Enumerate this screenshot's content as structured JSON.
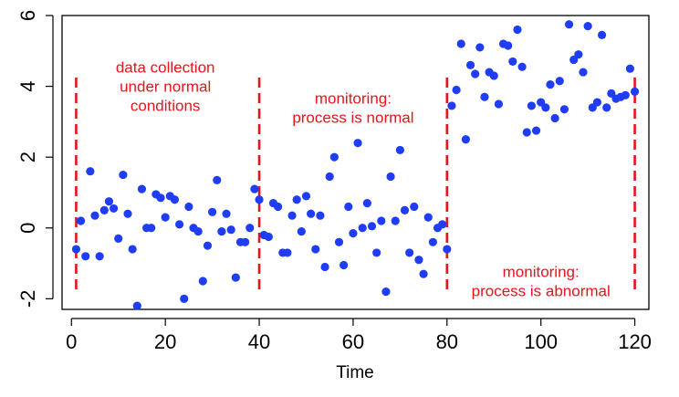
{
  "chart_data": {
    "type": "scatter",
    "title": "",
    "xlabel": "Time",
    "ylabel": "",
    "xlim": [
      -2,
      123
    ],
    "ylim": [
      -2.3,
      6.0
    ],
    "xticks": [
      0,
      20,
      40,
      60,
      80,
      100,
      120
    ],
    "yticks": [
      -2,
      0,
      2,
      4,
      6
    ],
    "grid": false,
    "point_color": "#1f3df5",
    "annotation_color": "#e8141b",
    "phase_boundaries": [
      1,
      40,
      80,
      120
    ],
    "annotations": [
      {
        "lines": [
          "data collection",
          "under normal",
          "conditions"
        ],
        "x": 20,
        "y": 4.0
      },
      {
        "lines": [
          "monitoring:",
          "process is normal"
        ],
        "x": 60,
        "y": 3.4
      },
      {
        "lines": [
          "monitoring:",
          "process is abnormal"
        ],
        "x": 100,
        "y": -1.5
      }
    ],
    "series": [
      {
        "x": [
          1,
          2,
          3,
          4,
          5,
          6,
          7,
          8,
          9,
          10,
          11,
          12,
          13,
          14,
          15,
          16,
          17,
          18,
          19,
          20,
          21,
          22,
          23,
          24,
          25,
          26,
          27,
          28,
          29,
          30,
          31,
          32,
          33,
          34,
          35,
          36,
          37,
          38,
          39,
          40,
          41,
          42,
          43,
          44,
          45,
          46,
          47,
          48,
          49,
          50,
          51,
          52,
          53,
          54,
          55,
          56,
          57,
          58,
          59,
          60,
          61,
          62,
          63,
          64,
          65,
          66,
          67,
          68,
          69,
          70,
          71,
          72,
          73,
          74,
          75,
          76,
          77,
          78,
          79,
          80,
          81,
          82,
          83,
          84,
          85,
          86,
          87,
          88,
          89,
          90,
          91,
          92,
          93,
          94,
          95,
          96,
          97,
          98,
          99,
          100,
          101,
          102,
          103,
          104,
          105,
          106,
          107,
          108,
          109,
          110,
          111,
          112,
          113,
          114,
          115,
          116,
          117,
          118,
          119,
          120
        ],
        "y": [
          -0.6,
          0.2,
          -0.8,
          1.6,
          0.35,
          -0.8,
          0.5,
          0.75,
          0.55,
          -0.3,
          1.5,
          0.4,
          -0.6,
          -2.2,
          1.1,
          0.0,
          0.0,
          0.95,
          0.85,
          0.3,
          0.9,
          0.8,
          0.1,
          -2.0,
          0.6,
          0.0,
          -0.1,
          -1.5,
          -0.5,
          0.45,
          1.35,
          -0.1,
          0.4,
          -0.05,
          -1.4,
          -0.4,
          -0.4,
          0.0,
          1.1,
          0.8,
          -0.2,
          -0.25,
          0.7,
          0.6,
          -0.7,
          -0.7,
          0.35,
          0.8,
          -0.1,
          0.9,
          0.4,
          -0.6,
          0.35,
          -1.1,
          1.45,
          2.0,
          -0.4,
          -1.05,
          0.6,
          -0.15,
          2.4,
          0.0,
          0.7,
          0.05,
          -0.7,
          0.2,
          -1.8,
          1.45,
          0.2,
          2.2,
          0.5,
          -0.7,
          0.6,
          -0.9,
          -1.3,
          0.3,
          -0.4,
          0.0,
          0.1,
          -0.6,
          3.45,
          3.9,
          5.2,
          2.5,
          4.6,
          4.35,
          5.1,
          3.7,
          4.4,
          4.3,
          3.5,
          5.2,
          5.15,
          4.7,
          5.6,
          4.55,
          2.7,
          3.45,
          2.75,
          3.55,
          3.4,
          4.05,
          3.1,
          4.15,
          3.35,
          5.75,
          4.75,
          4.9,
          4.4,
          5.7,
          3.4,
          3.55,
          5.45,
          3.4,
          3.8,
          3.65,
          3.7,
          3.75,
          4.5,
          3.85
        ]
      }
    ]
  }
}
